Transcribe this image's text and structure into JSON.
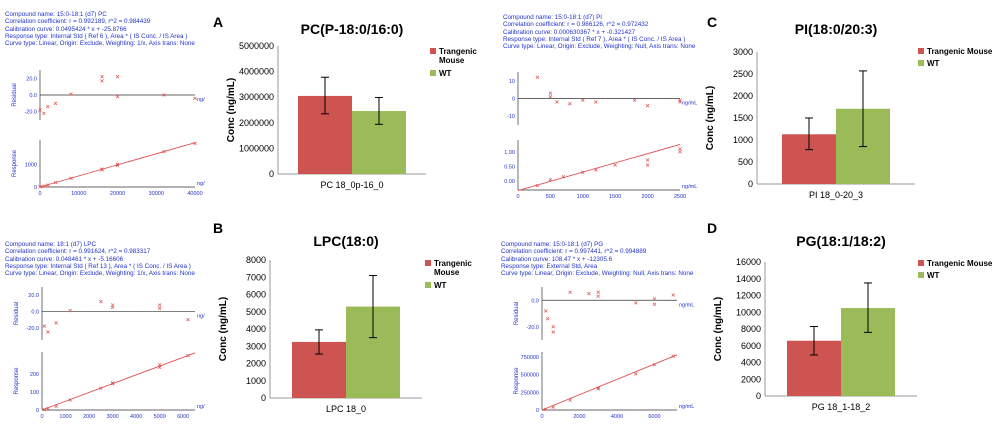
{
  "colors": {
    "transgenic": "#cd5451",
    "wt": "#9bbb59",
    "calib_line": "#e05050",
    "calib_text": "#2233cc"
  },
  "calibrations": [
    {
      "id": "pc",
      "lines": [
        "Compound name: 15:0-18:1 (d7) PC",
        "Correlation coefficient: r = 0.992189, r^2 = 0.984439",
        "Calibration curve: 0.0495424 * x + -25.8766",
        "Response type: Internal Std ( Ref 6 ), Area * ( IS Conc. / IS Area )",
        "Curve type: Linear, Origin: Exclude, Weighting: 1/x, Axis trans: None"
      ],
      "residual_label": "Residual",
      "response_label": "Response",
      "x_unit": "ng/mL",
      "residual_ticks": [
        "20.0",
        "0.0",
        "-20.0"
      ],
      "response_ticks": [
        "1000",
        "0"
      ],
      "x_ticks": [
        "0",
        "10000",
        "20000",
        "30000",
        "40000"
      ],
      "x_max": 40000,
      "res_range": [
        -30,
        30
      ],
      "resp_range": [
        0,
        2100
      ],
      "line": [
        [
          0,
          0
        ],
        [
          40000,
          1980
        ]
      ],
      "residual_points": [
        [
          0,
          -18
        ],
        [
          1000,
          -22
        ],
        [
          2000,
          -14
        ],
        [
          4000,
          -10
        ],
        [
          8000,
          1
        ],
        [
          16000,
          22
        ],
        [
          16000,
          17
        ],
        [
          20000,
          22
        ],
        [
          20000,
          -2
        ],
        [
          32000,
          0
        ],
        [
          40000,
          -4
        ]
      ],
      "response_points": [
        [
          0,
          5
        ],
        [
          1000,
          40
        ],
        [
          2000,
          90
        ],
        [
          4000,
          200
        ],
        [
          8000,
          390
        ],
        [
          16000,
          800
        ],
        [
          16000,
          770
        ],
        [
          20000,
          1010
        ],
        [
          20000,
          970
        ],
        [
          32000,
          1580
        ],
        [
          40000,
          1950
        ]
      ]
    },
    {
      "id": "pi",
      "lines": [
        "Compound name: 15:0-18:1 (d7) PI",
        "Correlation coefficient: r = 0.986126, r^2 = 0.972432",
        "Calibration curve: 0.000630367 * x + -0.321427",
        "Response type: Internal Std ( Ref 7 ), Area * ( IS Conc. / IS Area )",
        "Curve type: Linear, Origin: Exclude, Weighting: Null, Axis trans: None"
      ],
      "residual_label": "Residual",
      "response_label": "Response",
      "x_unit": "ng/mL",
      "residual_ticks": [
        "10",
        "0",
        "-10"
      ],
      "response_ticks": [
        "1.00",
        "0.50",
        "0.00"
      ],
      "x_ticks": [
        "0",
        "500",
        "1000",
        "1500",
        "2000",
        "2500"
      ],
      "x_max": 2500,
      "res_range": [
        -15,
        15
      ],
      "resp_range": [
        -0.3,
        1.4
      ],
      "line": [
        [
          0,
          -0.32
        ],
        [
          2500,
          1.25
        ]
      ],
      "residual_points": [
        [
          300,
          12
        ],
        [
          500,
          3
        ],
        [
          500,
          1
        ],
        [
          600,
          -2
        ],
        [
          800,
          -3
        ],
        [
          1000,
          -1
        ],
        [
          1200,
          -2
        ],
        [
          1800,
          -1
        ],
        [
          2000,
          -4
        ],
        [
          2500,
          -2
        ],
        [
          2500,
          -1
        ]
      ],
      "response_points": [
        [
          300,
          -0.15
        ],
        [
          500,
          0.05
        ],
        [
          700,
          0.15
        ],
        [
          1000,
          0.3
        ],
        [
          1200,
          0.38
        ],
        [
          1500,
          0.55
        ],
        [
          2000,
          0.72
        ],
        [
          2000,
          0.55
        ],
        [
          2500,
          1.1
        ],
        [
          2500,
          1.0
        ]
      ]
    },
    {
      "id": "lpc",
      "lines": [
        "Compound name: 18:1 (d7) LPC",
        "Correlation coefficient: r = 0.991624, r^2 = 0.983317",
        "Calibration curve: 0.048461 * x + -5.16606",
        "Response type: Internal Std ( Ref 13 ), Area * ( IS Conc. / IS Area )",
        "Curve type: Linear, Origin: Exclude, Weighting: 1/x, Axis trans: None"
      ],
      "residual_label": "Residual",
      "response_label": "Response",
      "x_unit": "ng/mL",
      "residual_ticks": [
        "20.0",
        "0.0",
        "-20.0"
      ],
      "response_ticks": [
        "200",
        "100",
        "0"
      ],
      "x_ticks": [
        "0",
        "1000",
        "2000",
        "3000",
        "4000",
        "5000",
        "6000"
      ],
      "x_max": 6500,
      "res_range": [
        -35,
        30
      ],
      "resp_range": [
        0,
        320
      ],
      "line": [
        [
          0,
          0
        ],
        [
          6500,
          315
        ]
      ],
      "residual_points": [
        [
          100,
          -18
        ],
        [
          250,
          -25
        ],
        [
          600,
          -14
        ],
        [
          1200,
          1
        ],
        [
          2500,
          12
        ],
        [
          3000,
          8
        ],
        [
          3000,
          5
        ],
        [
          5000,
          8
        ],
        [
          5000,
          4
        ],
        [
          6200,
          -10
        ]
      ],
      "response_points": [
        [
          100,
          2
        ],
        [
          250,
          8
        ],
        [
          600,
          20
        ],
        [
          1200,
          55
        ],
        [
          2500,
          120
        ],
        [
          3000,
          150
        ],
        [
          3000,
          145
        ],
        [
          5000,
          250
        ],
        [
          5000,
          235
        ],
        [
          6200,
          300
        ]
      ]
    },
    {
      "id": "pg",
      "lines": [
        "Compound name: 15:0-18:1 (d7) PG",
        "Correlation coefficient: r = 0.997441, r^2 = 0.994889",
        "Calibration curve: 108.47 * x + -12305.6",
        "Response type: External Std, Area",
        "Curve type: Linear, Origin: Exclude, Weighting: Null, Axis trans: None"
      ],
      "residual_label": "Residual",
      "response_label": "Response",
      "x_unit": "ng/mL",
      "residual_ticks": [
        "0.0",
        "-20.0"
      ],
      "response_ticks": [
        "750000",
        "500000",
        "250000",
        "0"
      ],
      "x_ticks": [
        "0",
        "2000",
        "4000",
        "6000"
      ],
      "x_max": 7200,
      "res_range": [
        -30,
        10
      ],
      "resp_range": [
        0,
        820000
      ],
      "line": [
        [
          0,
          0
        ],
        [
          7200,
          780000
        ]
      ],
      "residual_points": [
        [
          200,
          -8
        ],
        [
          300,
          -14
        ],
        [
          600,
          -24
        ],
        [
          600,
          -20
        ],
        [
          1500,
          6
        ],
        [
          2500,
          5
        ],
        [
          3000,
          3
        ],
        [
          3000,
          6
        ],
        [
          5000,
          -2
        ],
        [
          6000,
          1
        ],
        [
          6000,
          -3
        ],
        [
          7000,
          4
        ]
      ],
      "response_points": [
        [
          200,
          10000
        ],
        [
          600,
          40000
        ],
        [
          1500,
          140000
        ],
        [
          3000,
          310000
        ],
        [
          3000,
          300000
        ],
        [
          5000,
          510000
        ],
        [
          6000,
          640000
        ],
        [
          7000,
          760000
        ]
      ]
    }
  ],
  "chart_data": [
    {
      "type": "bar",
      "letter": "A",
      "title": "PC(P-18:0/16:0)",
      "ylabel": "Conc (ng/mL)",
      "xlabel": "PC 18_0p-16_0",
      "ylim": [
        0,
        5000000
      ],
      "yticks": [
        "0",
        "1000000",
        "2000000",
        "3000000",
        "4000000",
        "5000000"
      ],
      "series": [
        {
          "name": "Trangenic Mouse",
          "value": 3050000,
          "err_low": 2350000,
          "err_high": 3780000
        },
        {
          "name": "WT",
          "value": 2460000,
          "err_low": 1940000,
          "err_high": 2990000
        }
      ],
      "legend": "right"
    },
    {
      "type": "bar",
      "letter": "C",
      "title": "PI(18:0/20:3)",
      "ylabel": "Conc (ng/mL)",
      "xlabel": "PI 18_0-20_3",
      "ylim": [
        0,
        3000
      ],
      "yticks": [
        "0",
        "500",
        "1000",
        "1500",
        "2000",
        "2500",
        "3000"
      ],
      "series": [
        {
          "name": "Trangenic Mouse",
          "value": 1130,
          "err_low": 780,
          "err_high": 1500
        },
        {
          "name": "WT",
          "value": 1710,
          "err_low": 850,
          "err_high": 2570
        }
      ],
      "legend": "right"
    },
    {
      "type": "bar",
      "letter": "B",
      "title": "LPC(18:0)",
      "ylabel": "Conc (ng/mL)",
      "xlabel": "LPC 18_0",
      "ylim": [
        0,
        8000
      ],
      "yticks": [
        "0",
        "1000",
        "2000",
        "3000",
        "4000",
        "5000",
        "6000",
        "7000",
        "8000"
      ],
      "series": [
        {
          "name": "Trangenic Mouse",
          "value": 3250,
          "err_low": 2550,
          "err_high": 3950
        },
        {
          "name": "WT",
          "value": 5300,
          "err_low": 3500,
          "err_high": 7100
        }
      ],
      "legend": "right"
    },
    {
      "type": "bar",
      "letter": "D",
      "title": "PG(18:1/18:2)",
      "ylabel": "Conc (ng/mL)",
      "xlabel": "PG 18_1-18_2",
      "ylim": [
        0,
        16000
      ],
      "yticks": [
        "0",
        "2000",
        "4000",
        "6000",
        "8000",
        "10000",
        "12000",
        "14000",
        "16000"
      ],
      "series": [
        {
          "name": "Trangenic Mouse",
          "value": 6600,
          "err_low": 4900,
          "err_high": 8300
        },
        {
          "name": "WT",
          "value": 10500,
          "err_low": 7600,
          "err_high": 13500
        }
      ],
      "legend": "right"
    }
  ]
}
